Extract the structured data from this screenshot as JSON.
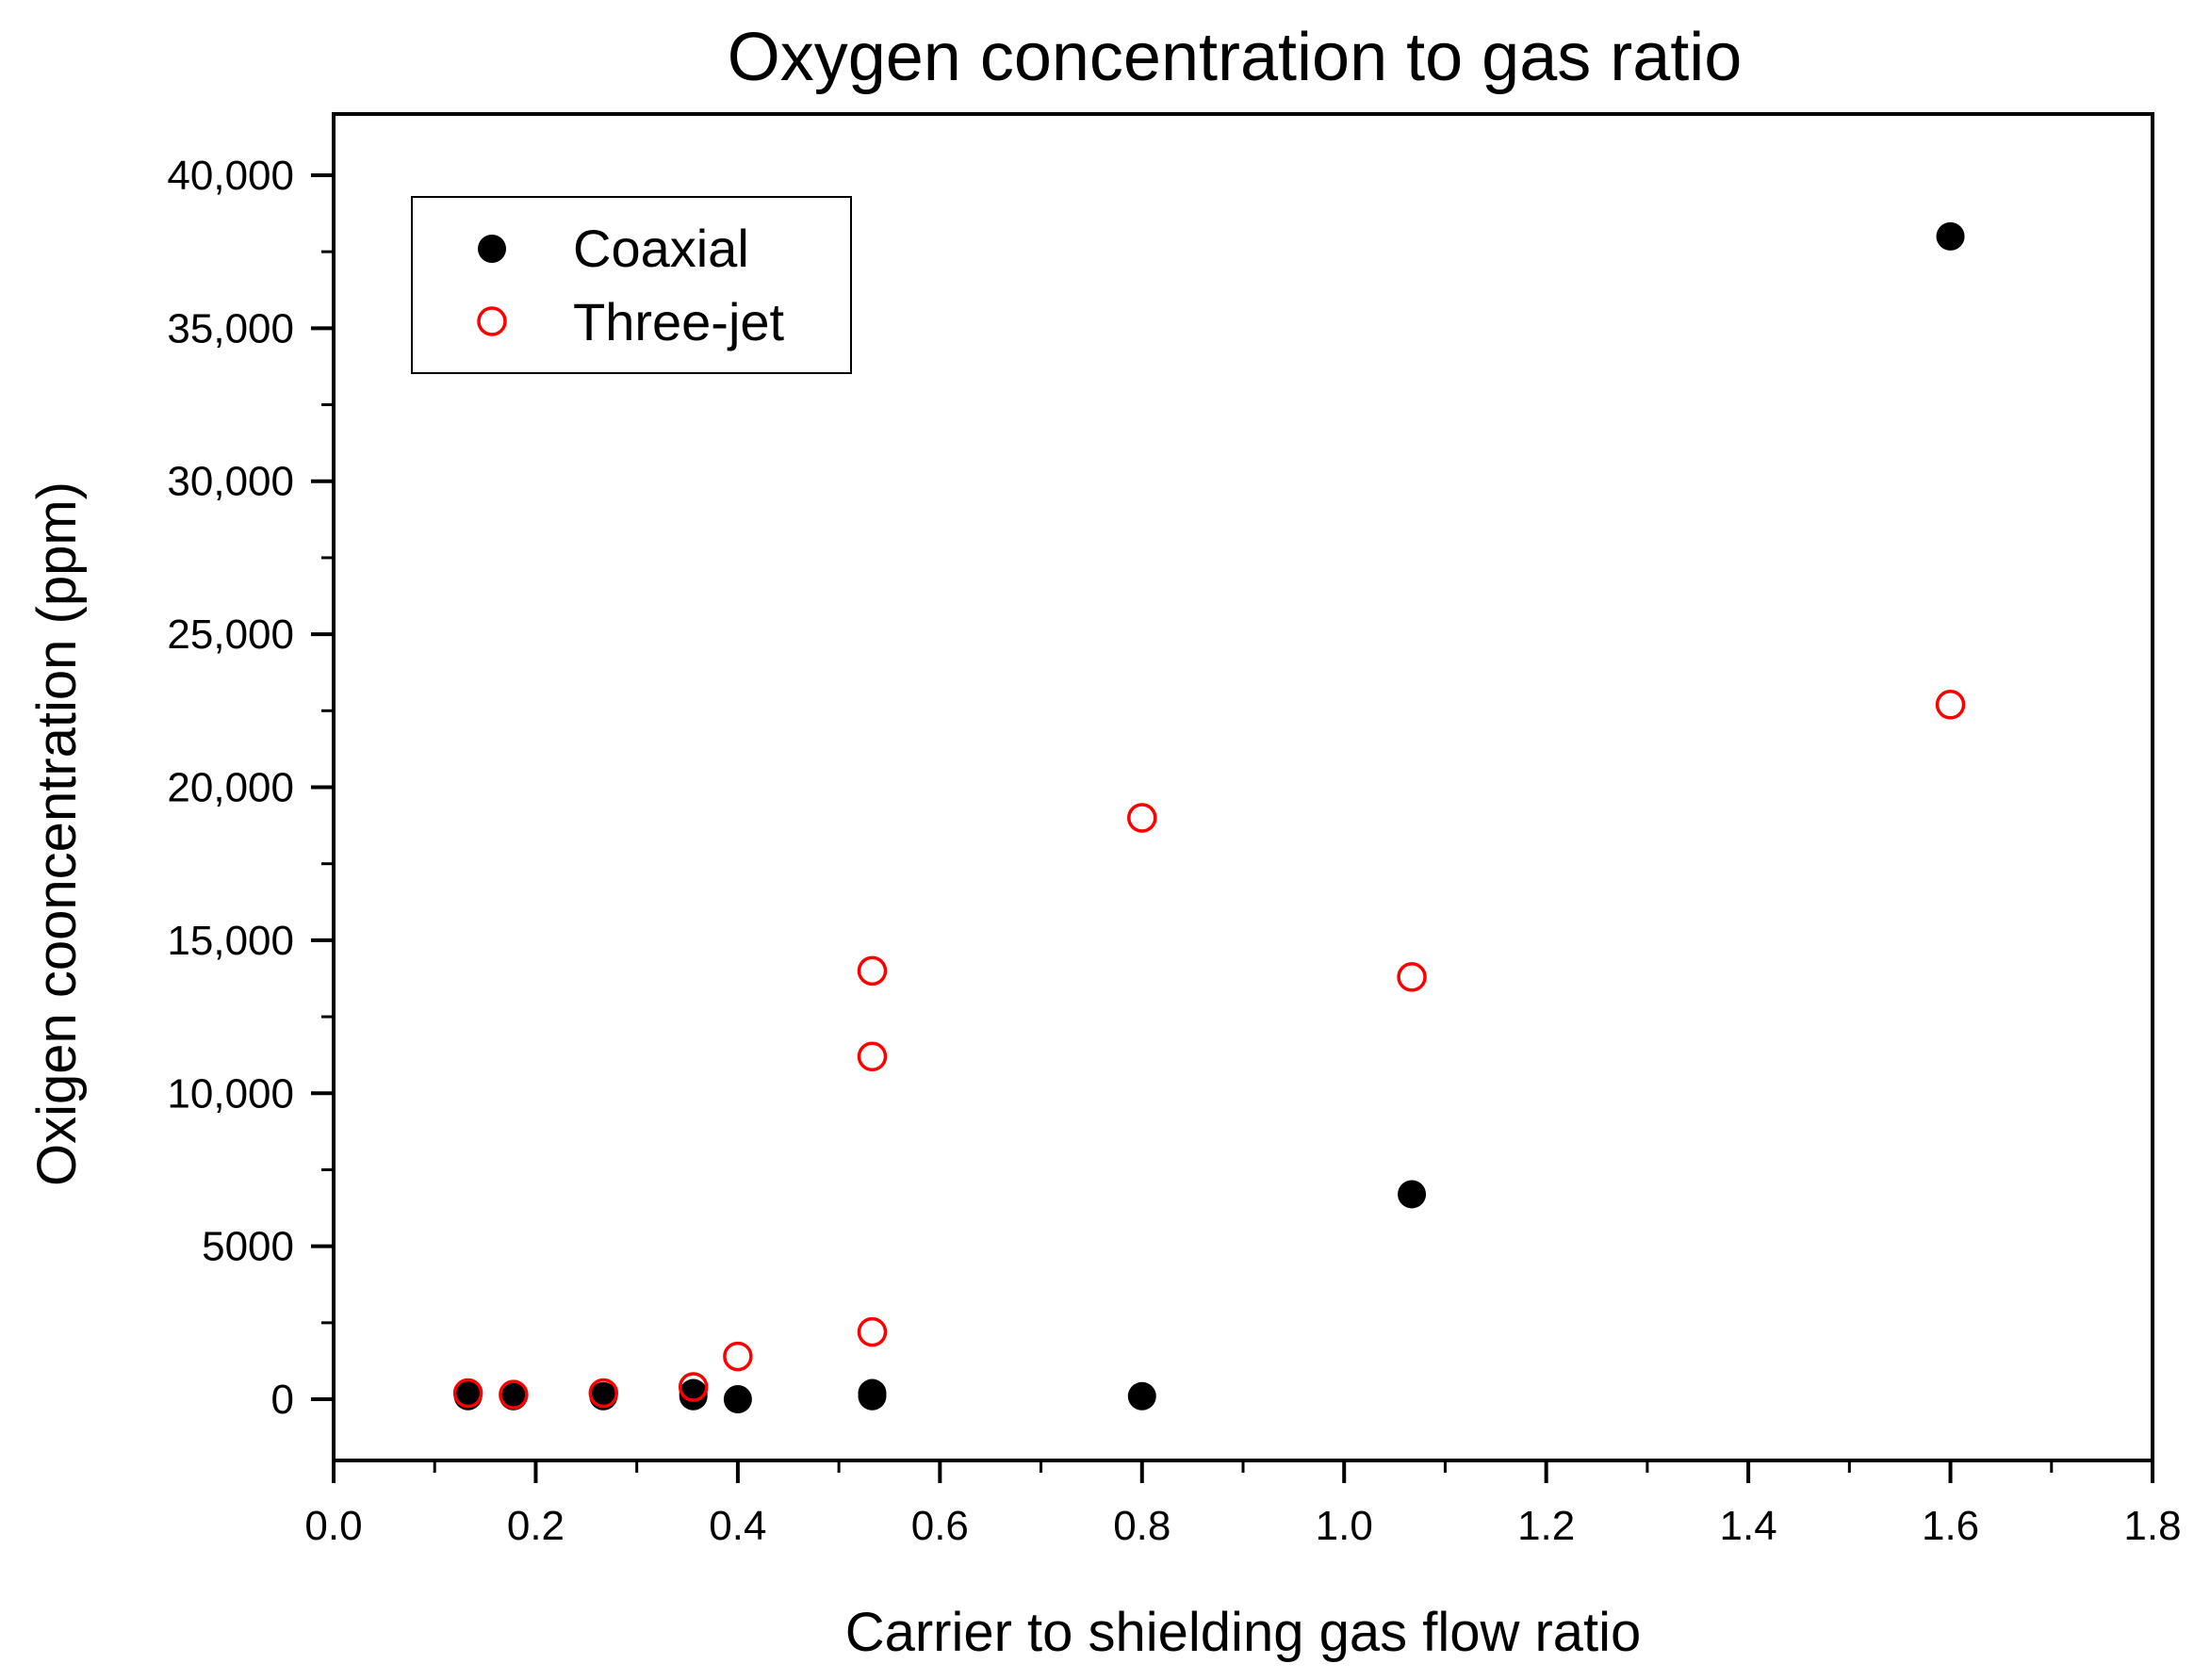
{
  "chart_data": {
    "type": "scatter",
    "title": "Oxygen concentration to gas ratio",
    "xlabel": "Carrier to shielding gas flow ratio",
    "ylabel": "Oxigen cooncentration (ppm)",
    "xlim": [
      0.0,
      1.8
    ],
    "ylim": [
      -2000,
      42000
    ],
    "x_ticks": [
      0.0,
      0.2,
      0.4,
      0.6,
      0.8,
      1.0,
      1.2,
      1.4,
      1.6,
      1.8
    ],
    "x_tick_labels": [
      "0.0",
      "0.2",
      "0.4",
      "0.6",
      "0.8",
      "1.0",
      "1.2",
      "1.4",
      "1.6",
      "1.8"
    ],
    "y_ticks": [
      0,
      5000,
      10000,
      15000,
      20000,
      25000,
      30000,
      35000,
      40000
    ],
    "y_tick_labels": [
      "0",
      "5000",
      "10,000",
      "15,000",
      "20,000",
      "25,000",
      "30,000",
      "35,000",
      "40,000"
    ],
    "legend_position": "top-left",
    "series": [
      {
        "name": "Coaxial",
        "marker": "filled-circle",
        "color": "#000000",
        "points": [
          {
            "x": 0.133,
            "y": 100
          },
          {
            "x": 0.133,
            "y": 200
          },
          {
            "x": 0.178,
            "y": 100
          },
          {
            "x": 0.267,
            "y": 100
          },
          {
            "x": 0.356,
            "y": 100
          },
          {
            "x": 0.356,
            "y": 200
          },
          {
            "x": 0.4,
            "y": 0
          },
          {
            "x": 0.533,
            "y": 100
          },
          {
            "x": 0.533,
            "y": 200
          },
          {
            "x": 0.8,
            "y": 100
          },
          {
            "x": 1.067,
            "y": 6700
          },
          {
            "x": 1.6,
            "y": 38000
          }
        ]
      },
      {
        "name": "Three-jet",
        "marker": "open-circle",
        "color": "#ff0000",
        "points": [
          {
            "x": 0.133,
            "y": 200
          },
          {
            "x": 0.178,
            "y": 150
          },
          {
            "x": 0.267,
            "y": 200
          },
          {
            "x": 0.356,
            "y": 400
          },
          {
            "x": 0.4,
            "y": 1400
          },
          {
            "x": 0.533,
            "y": 2200
          },
          {
            "x": 0.533,
            "y": 11200
          },
          {
            "x": 0.533,
            "y": 14000
          },
          {
            "x": 0.8,
            "y": 19000
          },
          {
            "x": 1.067,
            "y": 13800
          },
          {
            "x": 1.6,
            "y": 22700
          }
        ]
      }
    ]
  }
}
